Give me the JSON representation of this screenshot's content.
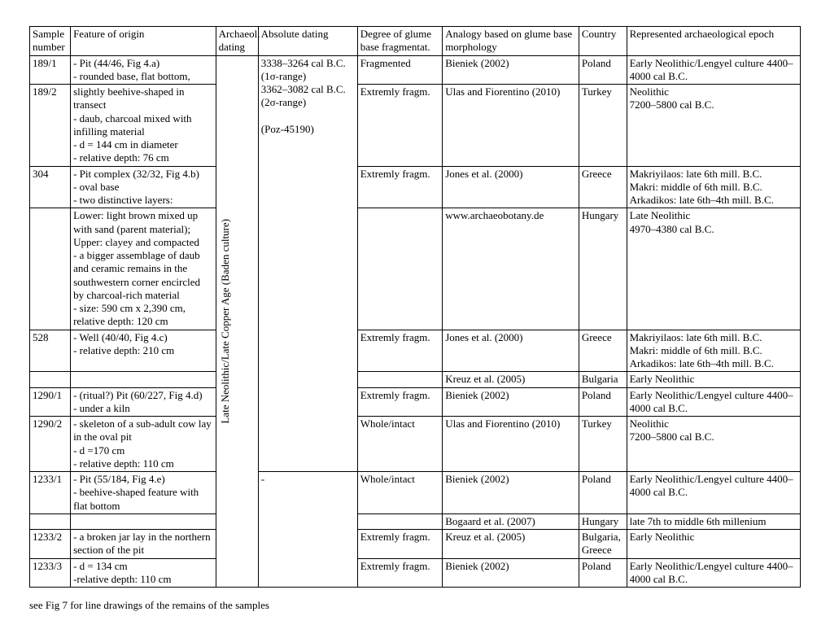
{
  "header": {
    "sample": "Sample number",
    "feature": "Feature of origin",
    "archaeol": "Archaeol. dating",
    "absolute": "Absolute dating",
    "glume": "Degree of glume base fragmentat.",
    "analogy": "Analogy based on glume base morphology",
    "country": "Country",
    "epoch": "Represented archaeological epoch"
  },
  "archaeol_dating": "Late Neolithic/Late Copper Age (Baden culture)",
  "absolute_dating": "3338–3264 cal B.C. (1σ-range)\n3362–3082 cal B.C. (2σ-range)\n\n(Poz-45190)",
  "rows": [
    {
      "sample": "189/1",
      "feature": "- Pit (44/46, Fig 4.a)\n- rounded base, flat bottom,",
      "glume": "Fragmented",
      "analogy": "Bieniek (2002)",
      "country": "Poland",
      "epoch": "Early Neolithic/Lengyel culture 4400–4000 cal B.C."
    },
    {
      "sample": "189/2",
      "feature": "slightly beehive-shaped in transect\n- daub, charcoal mixed with infilling material\n- d = 144 cm in diameter\n- relative depth: 76 cm",
      "glume": "Extremly fragm.",
      "analogy": "Ulas and Fiorentino (2010)",
      "country": "Turkey",
      "epoch": "Neolithic\n7200–5800 cal B.C."
    },
    {
      "sample": "304",
      "feature": "- Pit complex (32/32, Fig 4.b)\n- oval base\n- two distinctive layers:",
      "glume": "Extremly fragm.",
      "analogy": "Jones et al. (2000)",
      "country": "Greece",
      "epoch": "Makriyilaos: late 6th mill. B.C.\nMakri: middle of 6th mill. B.C.\nArkadikos: late 6th–4th mill. B.C."
    },
    {
      "sample": "",
      "feature": "Lower: light brown mixed up with sand (parent material); Upper: clayey and compacted\n- a bigger assemblage of daub and ceramic remains in the southwestern corner encircled by charcoal-rich material\n- size: 590 cm x 2,390 cm, relative depth: 120 cm",
      "glume": "",
      "analogy": "www.archaeobotany.de",
      "country": "Hungary",
      "epoch": "Late Neolithic\n4970–4380 cal B.C."
    },
    {
      "sample": "528",
      "feature": "- Well (40/40, Fig 4.c)\n- relative depth: 210 cm",
      "glume": "Extremly fragm.",
      "analogy": "Jones et al. (2000)",
      "country": "Greece",
      "epoch": "Makriyilaos: late 6th mill. B.C.\nMakri: middle of 6th mill. B.C.\nArkadikos: late 6th–4th mill. B.C."
    },
    {
      "sample": "",
      "feature": "",
      "glume": "",
      "analogy": "Kreuz et al. (2005)",
      "country": "Bulgaria",
      "epoch": "Early Neolithic"
    },
    {
      "sample": "1290/1",
      "feature": "- (ritual?) Pit (60/227, Fig 4.d)\n- under a kiln",
      "glume": "Extremly fragm.",
      "analogy": "Bieniek (2002)",
      "country": "Poland",
      "epoch": "Early Neolithic/Lengyel culture 4400–4000 cal B.C."
    },
    {
      "sample": "1290/2",
      "feature": "- skeleton of a sub-adult cow lay in the oval pit\n- d =170 cm\n- relative depth: 110 cm",
      "glume": "Whole/intact",
      "analogy": "Ulas and Fiorentino (2010)",
      "country": "Turkey",
      "epoch": "Neolithic\n7200–5800 cal B.C."
    },
    {
      "sample": "1233/1",
      "feature": "- Pit (55/184, Fig 4.e)\n- beehive-shaped feature with flat bottom",
      "abs": "-",
      "glume": "Whole/intact",
      "analogy": "Bieniek (2002)",
      "country": "Poland",
      "epoch": "Early Neolithic/Lengyel culture 4400–4000 cal B.C."
    },
    {
      "sample": "",
      "feature": "",
      "glume": "",
      "analogy": "Bogaard et al. (2007)",
      "country": "Hungary",
      "epoch": "late 7th to middle 6th millenium"
    },
    {
      "sample": "1233/2",
      "feature": "- a broken jar lay in the northern section of the pit",
      "glume": "Extremly fragm.",
      "analogy": "Kreuz et al. (2005)",
      "country": "Bulgaria, Greece",
      "epoch": "Early Neolithic"
    },
    {
      "sample": "1233/3",
      "feature": "- d = 134 cm\n-relative depth: 110 cm",
      "glume": "Extremly fragm.",
      "analogy": "Bieniek (2002)",
      "country": "Poland",
      "epoch": "Early Neolithic/Lengyel culture 4400–4000 cal B.C."
    }
  ],
  "footnote": "see Fig 7 for line drawings of the remains of the samples"
}
